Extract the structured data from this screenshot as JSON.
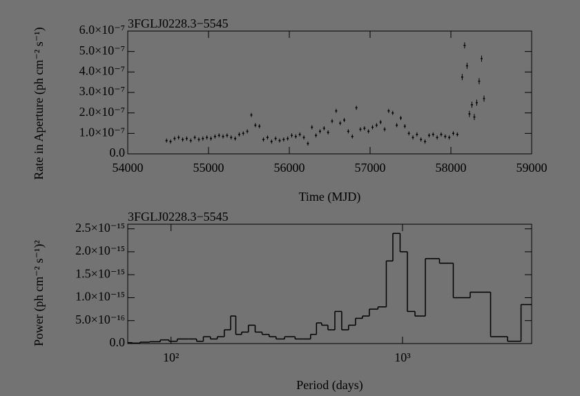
{
  "chart_data": [
    {
      "type": "scatter",
      "title": "3FGLJ0228.3−5545",
      "x_label": "Time (MJD)",
      "y_label": "Rate in Aperture (ph cm⁻² s⁻¹)",
      "color": "#000000",
      "x": [
        54480,
        54530,
        54580,
        54630,
        54680,
        54730,
        54780,
        54830,
        54880,
        54930,
        54980,
        55030,
        55080,
        55130,
        55180,
        55230,
        55280,
        55330,
        55380,
        55430,
        55480,
        55530,
        55580,
        55630,
        55680,
        55730,
        55780,
        55830,
        55880,
        55930,
        55980,
        56030,
        56080,
        56130,
        56180,
        56230,
        56280,
        56330,
        56380,
        56430,
        56480,
        56530,
        56580,
        56630,
        56680,
        56730,
        56780,
        56830,
        56880,
        56930,
        56980,
        57030,
        57080,
        57130,
        57180,
        57230,
        57280,
        57330,
        57380,
        57430,
        57480,
        57530,
        57580,
        57630,
        57680,
        57730,
        57780,
        57830,
        57880,
        57930,
        57980,
        58030,
        58080,
        58140,
        58170,
        58200,
        58230,
        58260,
        58290,
        58320,
        58350,
        58380,
        58410
      ],
      "values": [
        6.5e-08,
        6e-08,
        7.5e-08,
        8e-08,
        7e-08,
        7.5e-08,
        6.5e-08,
        8e-08,
        7e-08,
        7.5e-08,
        8e-08,
        7.5e-08,
        8.5e-08,
        9e-08,
        8.5e-08,
        9e-08,
        8e-08,
        7.5e-08,
        9.5e-08,
        1e-07,
        1.1e-07,
        1.9e-07,
        1.4e-07,
        1.35e-07,
        7e-08,
        8e-08,
        6e-08,
        7.5e-08,
        6.5e-08,
        7e-08,
        7.5e-08,
        9e-08,
        8.5e-08,
        9.5e-08,
        8e-08,
        5e-08,
        1.3e-07,
        9e-08,
        1.1e-07,
        1.25e-07,
        1.05e-07,
        1.6e-07,
        2.1e-07,
        1.5e-07,
        1.65e-07,
        1.1e-07,
        8.5e-08,
        2.25e-07,
        1.2e-07,
        1.25e-07,
        1.1e-07,
        1.3e-07,
        1.4e-07,
        1.55e-07,
        1.2e-07,
        2.1e-07,
        2e-07,
        1.4e-07,
        1.75e-07,
        1.35e-07,
        1e-07,
        8e-08,
        9.5e-08,
        7e-08,
        6e-08,
        9e-08,
        9.5e-08,
        8e-08,
        9.5e-08,
        8.5e-08,
        8e-08,
        1e-07,
        9.5e-08,
        3.75e-07,
        5.3e-07,
        4.3e-07,
        1.95e-07,
        2.4e-07,
        1.8e-07,
        2.5e-07,
        3.55e-07,
        4.65e-07,
        2.7e-07
      ],
      "errors": [
        1e-08,
        1e-08,
        1e-08,
        1e-08,
        1e-08,
        1e-08,
        1e-08,
        1e-08,
        1e-08,
        1e-08,
        1e-08,
        1e-08,
        1e-08,
        1e-08,
        1e-08,
        1e-08,
        1e-08,
        1e-08,
        1e-08,
        1e-08,
        1e-08,
        1e-08,
        1e-08,
        1e-08,
        1e-08,
        1e-08,
        1e-08,
        1e-08,
        1e-08,
        1e-08,
        1e-08,
        1e-08,
        1e-08,
        1e-08,
        1e-08,
        1e-08,
        1e-08,
        1e-08,
        1e-08,
        1e-08,
        1e-08,
        1e-08,
        1e-08,
        1e-08,
        1e-08,
        1e-08,
        1e-08,
        1e-08,
        1e-08,
        1e-08,
        1e-08,
        1e-08,
        1e-08,
        1e-08,
        1e-08,
        1e-08,
        1e-08,
        1e-08,
        1e-08,
        1e-08,
        1e-08,
        1e-08,
        1e-08,
        1e-08,
        1e-08,
        1e-08,
        1e-08,
        1e-08,
        1e-08,
        1e-08,
        1e-08,
        1e-08,
        1e-08,
        1.5e-08,
        1.5e-08,
        1.5e-08,
        1.5e-08,
        1.5e-08,
        1.5e-08,
        1.5e-08,
        1.5e-08,
        1.5e-08,
        1.5e-08
      ],
      "xlim": [
        54000,
        59000
      ],
      "xticks": [
        54000,
        55000,
        56000,
        57000,
        58000,
        59000
      ],
      "ylim": [
        0,
        6e-07
      ],
      "yticks": [
        {
          "value": 0,
          "label": "0.0"
        },
        {
          "value": 1e-07,
          "label": "1.0×10⁻⁷"
        },
        {
          "value": 2e-07,
          "label": "2.0×10⁻⁷"
        },
        {
          "value": 3e-07,
          "label": "3.0×10⁻⁷"
        },
        {
          "value": 4e-07,
          "label": "4.0×10⁻⁷"
        },
        {
          "value": 5e-07,
          "label": "5.0×10⁻⁷"
        },
        {
          "value": 6e-07,
          "label": "6.0×10⁻⁷"
        }
      ]
    },
    {
      "type": "step",
      "title": "3FGLJ0228.3−5545",
      "x_label": "Period (days)",
      "y_label": "Power (ph cm⁻² s⁻¹)²",
      "color": "#000000",
      "xscale": "log",
      "x": [
        66,
        70,
        77,
        85,
        95,
        101,
        112,
        125,
        133,
        143,
        153,
        164,
        176,
        186,
        195,
        209,
        223,
        239,
        256,
        275,
        294,
        326,
        362,
        387,
        415,
        435,
        460,
        493,
        528,
        565,
        605,
        649,
        695,
        744,
        825,
        878,
        940,
        1014,
        1086,
        1180,
        1335,
        1563,
        1757,
        2188,
        2636,
        3068,
        3445
      ],
      "values": [
        2e-17,
        1e-17,
        3e-17,
        4e-17,
        8e-17,
        5e-17,
        1e-16,
        1e-16,
        5e-17,
        1.5e-16,
        1e-16,
        1.5e-16,
        3e-16,
        6e-16,
        2e-16,
        2.5e-16,
        4e-16,
        2.5e-16,
        2e-16,
        1.5e-16,
        1e-16,
        1.5e-16,
        1e-16,
        1e-16,
        2e-16,
        4.5e-16,
        4e-16,
        3e-16,
        7e-16,
        3e-16,
        4e-16,
        5.5e-16,
        6e-16,
        7.5e-16,
        8e-16,
        1.8e-15,
        2.4e-15,
        2e-15,
        7e-16,
        6e-16,
        1.85e-15,
        1.75e-15,
        1e-15,
        1.12e-15,
        1.5e-16,
        5e-17,
        8.5e-16
      ],
      "xlim": [
        65,
        3614
      ],
      "xticks": [
        {
          "value": 100,
          "label": "10²"
        },
        {
          "value": 1000,
          "label": "10³"
        }
      ],
      "ylim": [
        0,
        2.6e-15
      ],
      "yticks": [
        {
          "value": 0,
          "label": "0.0"
        },
        {
          "value": 5e-16,
          "label": "5.0×10⁻¹⁶"
        },
        {
          "value": 1e-15,
          "label": "1.0×10⁻¹⁵"
        },
        {
          "value": 1.5e-15,
          "label": "1.5×10⁻¹⁵"
        },
        {
          "value": 2e-15,
          "label": "2.0×10⁻¹⁵"
        },
        {
          "value": 2.5e-15,
          "label": "2.5×10⁻¹⁵"
        }
      ]
    }
  ]
}
